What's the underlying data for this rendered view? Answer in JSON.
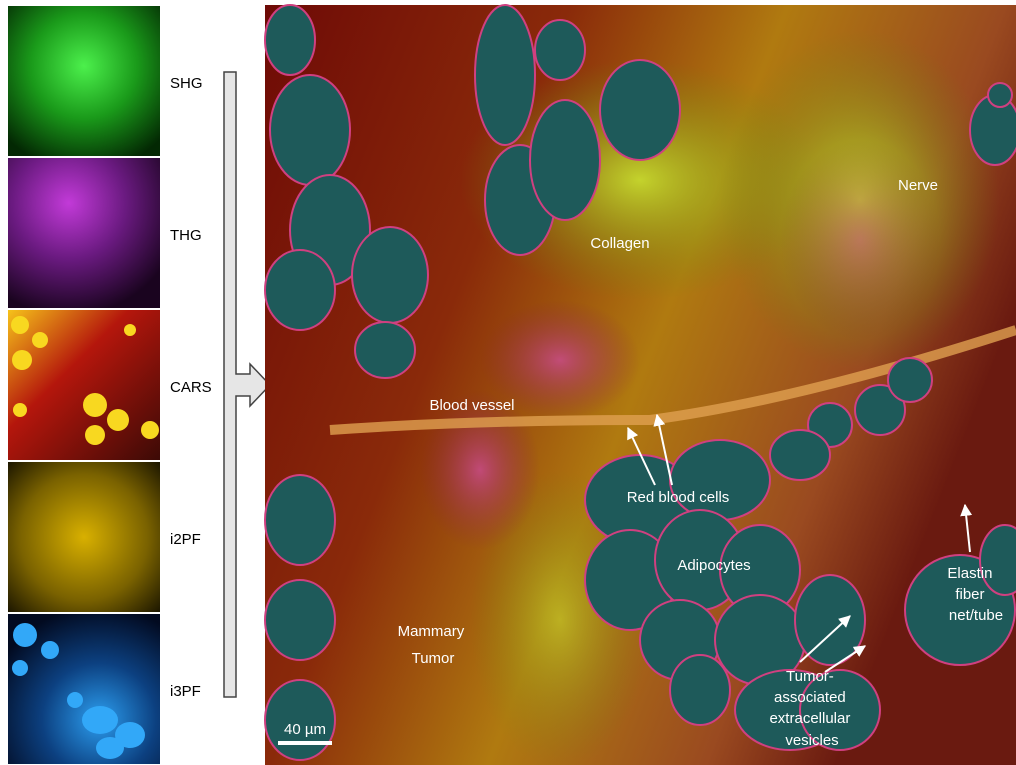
{
  "channels": [
    "SHG",
    "THG",
    "CARS",
    "i2PF",
    "i3PF"
  ],
  "annotations": {
    "collagen": [
      "Collagen"
    ],
    "nerve": [
      "Nerve"
    ],
    "blood_vessel": [
      "Blood vessel"
    ],
    "red_blood_cells": [
      "Red blood cells"
    ],
    "adipocytes": [
      "Adipocytes"
    ],
    "mammary_tumor": [
      "Mammary",
      "Tumor"
    ],
    "vesicles": [
      "Tumor-",
      "associated",
      "extracellular",
      "vesicles"
    ],
    "elastin": [
      "Elastin",
      "fiber",
      "net/tube"
    ]
  },
  "scale_bar": "40 µm"
}
